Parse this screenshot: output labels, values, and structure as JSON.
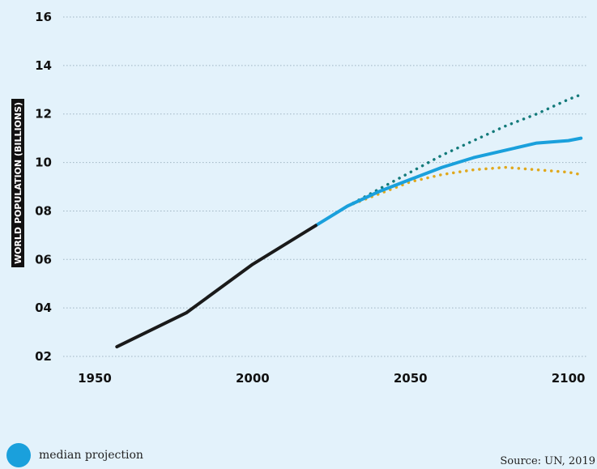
{
  "chart_data": {
    "type": "line",
    "ylabel": "WORLD POPULATION (BILLIONS)",
    "xlim": [
      1940,
      2106
    ],
    "ylim": [
      1.5,
      16.2
    ],
    "x_ticks": [
      1950,
      2000,
      2050,
      2100
    ],
    "y_ticks": [
      {
        "value": 2,
        "label": "02"
      },
      {
        "value": 4,
        "label": "04"
      },
      {
        "value": 6,
        "label": "06"
      },
      {
        "value": 8,
        "label": "08"
      },
      {
        "value": 10,
        "label": "10"
      },
      {
        "value": 12,
        "label": "12"
      },
      {
        "value": 14,
        "label": "14"
      },
      {
        "value": 16,
        "label": "16"
      }
    ],
    "grid": {
      "horizontal": true,
      "style": "dotted"
    },
    "series": [
      {
        "id": "historical",
        "color": "#1a1a1a",
        "style": "solid",
        "x": [
          1957,
          1979,
          2000,
          2020
        ],
        "y": [
          2.4,
          3.8,
          5.8,
          7.4
        ]
      },
      {
        "id": "median",
        "color": "#1aa0dc",
        "style": "solid",
        "x": [
          2020,
          2030,
          2040,
          2050,
          2060,
          2070,
          2080,
          2090,
          2100,
          2104
        ],
        "y": [
          7.4,
          8.2,
          8.8,
          9.3,
          9.8,
          10.2,
          10.5,
          10.8,
          10.9,
          11.0
        ]
      },
      {
        "id": "high",
        "color": "#137a7a",
        "style": "dotted",
        "x": [
          2030,
          2040,
          2050,
          2060,
          2070,
          2080,
          2090,
          2100,
          2104
        ],
        "y": [
          8.2,
          8.9,
          9.6,
          10.3,
          10.9,
          11.5,
          12.0,
          12.6,
          12.8
        ]
      },
      {
        "id": "low",
        "color": "#e0a81c",
        "style": "dotted",
        "x": [
          2030,
          2040,
          2050,
          2060,
          2070,
          2080,
          2090,
          2100,
          2104
        ],
        "y": [
          8.2,
          8.7,
          9.2,
          9.5,
          9.7,
          9.8,
          9.7,
          9.6,
          9.5
        ]
      }
    ]
  },
  "legend": {
    "label": "median projection",
    "color": "#1aa0dc"
  },
  "source": "Source: UN, 2019"
}
